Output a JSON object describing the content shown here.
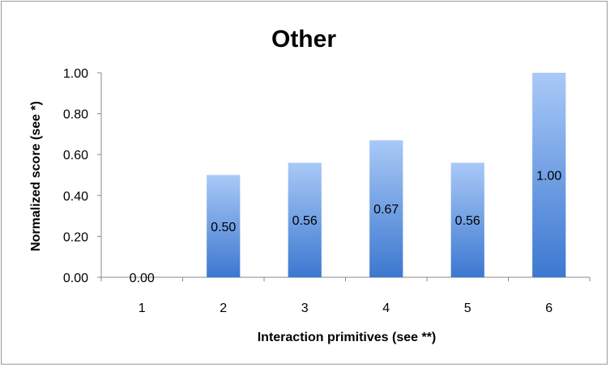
{
  "chart_data": {
    "type": "bar",
    "title": "Other",
    "xlabel": "Interaction primitives (see **)",
    "ylabel": "Normalized score (see *)",
    "categories": [
      "1",
      "2",
      "3",
      "4",
      "5",
      "6"
    ],
    "values": [
      0.0,
      0.5,
      0.56,
      0.67,
      0.56,
      1.0
    ],
    "data_labels": [
      "0.00",
      "0.50",
      "0.56",
      "0.67",
      "0.56",
      "1.00"
    ],
    "ylim": [
      0,
      1
    ],
    "yticks": [
      "0.00",
      "0.20",
      "0.40",
      "0.60",
      "0.80",
      "1.00"
    ],
    "grid": false,
    "legend": "none",
    "colors": {
      "bar_top": "#a9c9f7",
      "bar_bottom": "#3c78d0",
      "axis": "#888888"
    }
  }
}
